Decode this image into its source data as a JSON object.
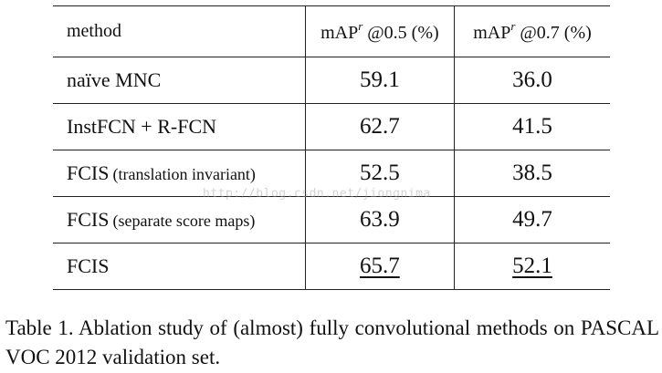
{
  "table": {
    "header": {
      "method": "method",
      "col1_prefix": "mAP",
      "col1_sup": "r",
      "col1_suffix": " @0.5 (%)",
      "col2_prefix": "mAP",
      "col2_sup": "r",
      "col2_suffix": " @0.7 (%)"
    },
    "rows": [
      {
        "name": "naïve MNC",
        "note": "",
        "v1": "59.1",
        "v2": "36.0"
      },
      {
        "name": "InstFCN + R-FCN",
        "note": "",
        "v1": "62.7",
        "v2": "41.5"
      },
      {
        "name": "FCIS",
        "note": "(translation invariant)",
        "v1": "52.5",
        "v2": "38.5"
      },
      {
        "name": "FCIS",
        "note": "(separate score maps)",
        "v1": "63.9",
        "v2": "49.7"
      },
      {
        "name": "FCIS",
        "note": "",
        "v1": "65.7",
        "v2": "52.1"
      }
    ]
  },
  "caption": "Table 1. Ablation study of (almost) fully convolutional methods on PASCAL VOC 2012 validation set.",
  "watermark": "http://blog.csdn.net/jiongnima"
}
